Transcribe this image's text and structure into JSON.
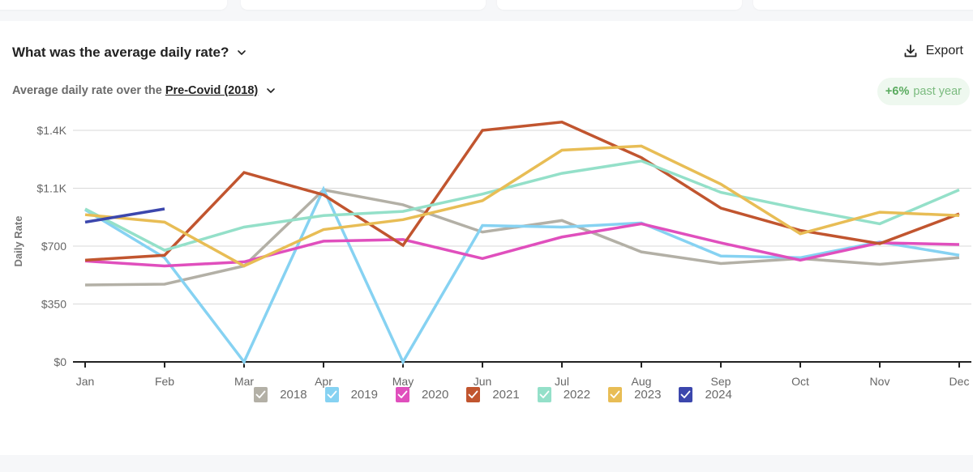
{
  "header": {
    "title": "What was the average daily rate?",
    "subtitle_prefix": "Average daily rate over the",
    "period": "Pre-Covid (2018)",
    "export_label": "Export",
    "badge_value": "+6%",
    "badge_text": "past year"
  },
  "icons": {
    "title_dropdown": "chevron-down-icon",
    "period_dropdown": "chevron-down-icon",
    "export": "download-icon",
    "legend_check": "checkmark-icon"
  },
  "colors": {
    "badge_bg": "#eef8ef",
    "badge_text": "#5aab5f"
  },
  "chart_data": {
    "type": "line",
    "title": "What was the average daily rate?",
    "xlabel": "",
    "ylabel": "Daily Rate",
    "categories": [
      "Jan",
      "Feb",
      "Mar",
      "Apr",
      "May",
      "Jun",
      "Jul",
      "Aug",
      "Sep",
      "Oct",
      "Nov",
      "Dec"
    ],
    "ylim": [
      0,
      1400
    ],
    "yticks": [
      0,
      350,
      700,
      1050,
      1400
    ],
    "ytick_labels": [
      "$0",
      "$350",
      "$700",
      "$1.1K",
      "$1.4K"
    ],
    "grid": true,
    "legend_position": "bottom",
    "series": [
      {
        "name": "2018",
        "color": "#b3b0a6",
        "values": [
          465,
          470,
          580,
          1040,
          950,
          785,
          855,
          665,
          595,
          625,
          590,
          630
        ]
      },
      {
        "name": "2019",
        "color": "#86d2f2",
        "values": [
          920,
          630,
          0,
          1045,
          0,
          825,
          815,
          840,
          640,
          630,
          725,
          645
        ]
      },
      {
        "name": "2020",
        "color": "#e04fbd",
        "values": [
          610,
          580,
          605,
          730,
          740,
          625,
          755,
          835,
          720,
          615,
          720,
          710
        ]
      },
      {
        "name": "2021",
        "color": "#c1552f",
        "values": [
          615,
          645,
          1145,
          1010,
          705,
          1400,
          1450,
          1235,
          930,
          795,
          715,
          895
        ]
      },
      {
        "name": "2022",
        "color": "#94e0c9",
        "values": [
          925,
          675,
          815,
          885,
          910,
          1015,
          1140,
          1215,
          1025,
          925,
          835,
          1040
        ]
      },
      {
        "name": "2023",
        "color": "#e8bd55",
        "values": [
          890,
          845,
          580,
          800,
          860,
          975,
          1280,
          1305,
          1075,
          775,
          905,
          885
        ]
      },
      {
        "name": "2024",
        "color": "#3c47ad",
        "values": [
          845,
          925
        ]
      }
    ]
  }
}
